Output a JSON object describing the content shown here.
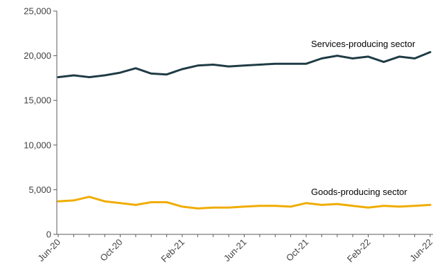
{
  "chart_data": {
    "type": "line",
    "x": [
      "Jun-20",
      "Jul-20",
      "Aug-20",
      "Sep-20",
      "Oct-20",
      "Nov-20",
      "Dec-20",
      "Jan-21",
      "Feb-21",
      "Mar-21",
      "Apr-21",
      "May-21",
      "Jun-21",
      "Jul-21",
      "Aug-21",
      "Sep-21",
      "Oct-21",
      "Nov-21",
      "Dec-21",
      "Jan-22",
      "Feb-22",
      "Mar-22",
      "Apr-22",
      "May-22",
      "Jun-22"
    ],
    "x_tick_labels": [
      "Jun-20",
      "Oct-20",
      "Feb-21",
      "Jun-21",
      "Oct-21",
      "Feb-22",
      "Jun-22"
    ],
    "y_ticks": [
      0,
      5000,
      10000,
      15000,
      20000,
      25000
    ],
    "y_tick_labels": [
      "0",
      "5,000",
      "10,000",
      "15,000",
      "20,000",
      "25,000"
    ],
    "ylim": [
      0,
      25000
    ],
    "grid": false,
    "series": [
      {
        "name": "Services-producing sector",
        "color": "#1f3b45",
        "values": [
          17600,
          17800,
          17600,
          17800,
          18100,
          18600,
          18000,
          17900,
          18500,
          18900,
          19000,
          18800,
          18900,
          19000,
          19100,
          19100,
          19100,
          19700,
          20000,
          19700,
          19900,
          19300,
          19900,
          19700,
          20400
        ]
      },
      {
        "name": "Goods-producing sector",
        "color": "#f0ac00",
        "values": [
          3700,
          3800,
          4200,
          3700,
          3500,
          3300,
          3600,
          3600,
          3100,
          2900,
          3000,
          3000,
          3100,
          3200,
          3200,
          3100,
          3500,
          3300,
          3400,
          3200,
          3000,
          3200,
          3100,
          3200,
          3300
        ]
      }
    ]
  }
}
